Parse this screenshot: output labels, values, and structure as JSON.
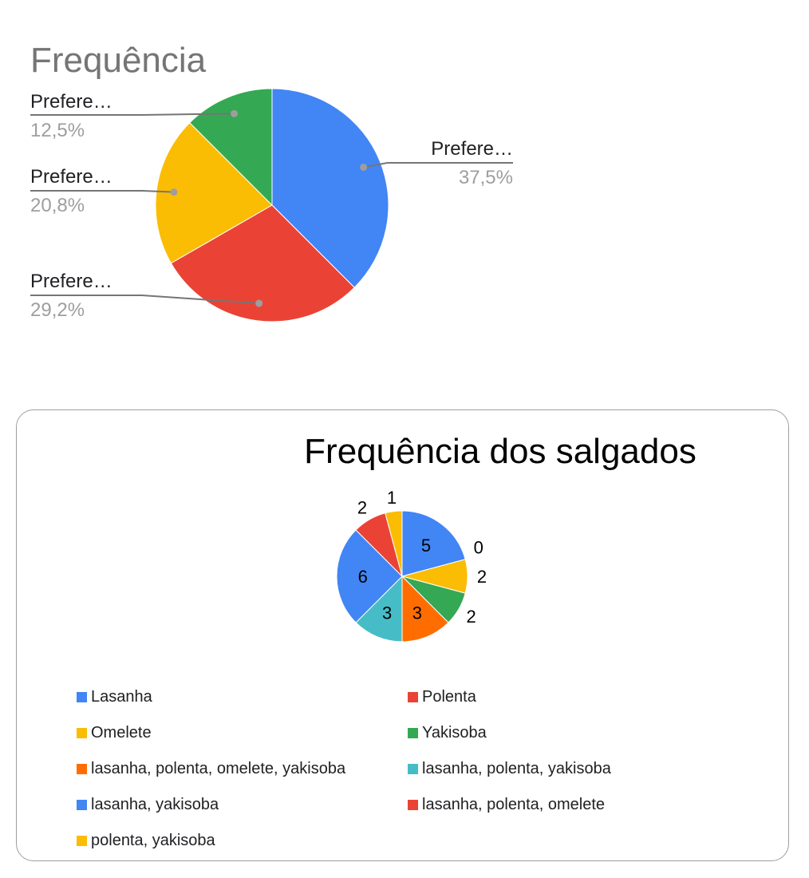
{
  "chart_data": [
    {
      "type": "pie",
      "title": "Frequência",
      "start_angle_deg": 0,
      "slices": [
        {
          "label": "Prefere…",
          "value": 37.5,
          "pct_label": "37,5%",
          "color": "#4285F4"
        },
        {
          "label": "Prefere…",
          "value": 29.2,
          "pct_label": "29,2%",
          "color": "#EA4335"
        },
        {
          "label": "Prefere…",
          "value": 20.8,
          "pct_label": "20,8%",
          "color": "#FBBC04"
        },
        {
          "label": "Prefere…",
          "value": 12.5,
          "pct_label": "12,5%",
          "color": "#34A853"
        }
      ]
    },
    {
      "type": "pie",
      "title": "Frequência dos salgados",
      "start_angle_deg": 0,
      "slices": [
        {
          "label": "Lasanha",
          "value": 5,
          "color": "#4285F4"
        },
        {
          "label": "Polenta",
          "value": 0,
          "color": "#EA4335"
        },
        {
          "label": "Omelete",
          "value": 2,
          "color": "#FBBC04"
        },
        {
          "label": "Yakisoba",
          "value": 2,
          "color": "#34A853"
        },
        {
          "label": "lasanha, polenta, omelete, yakisoba",
          "value": 3,
          "color": "#FF6D01"
        },
        {
          "label": "lasanha, polenta, yakisoba",
          "value": 3,
          "color": "#46BDC6"
        },
        {
          "label": "lasanha, yakisoba",
          "value": 6,
          "color": "#4285F4"
        },
        {
          "label": "lasanha, polenta, omelete",
          "value": 2,
          "color": "#EA4335"
        },
        {
          "label": "polenta, yakisoba",
          "value": 1,
          "color": "#FBBC04"
        }
      ],
      "legend_position": "bottom"
    }
  ]
}
